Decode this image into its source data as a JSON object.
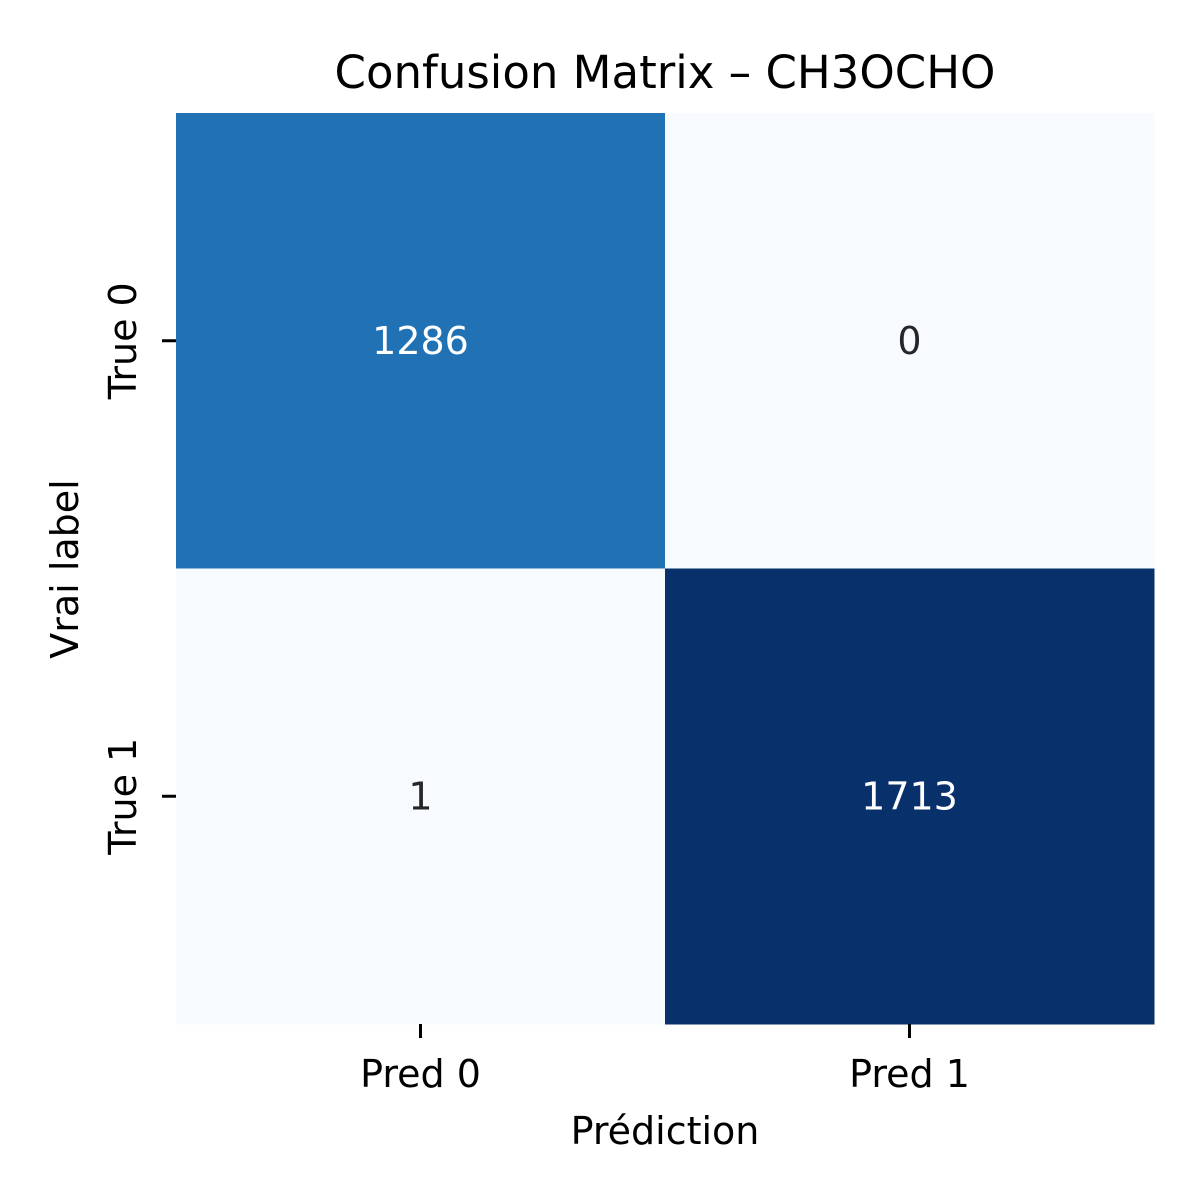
{
  "chart_data": {
    "type": "heatmap",
    "title": "Confusion Matrix – CH3OCHO",
    "xlabel": "Prédiction",
    "ylabel": "Vrai label",
    "x_categories": [
      "Pred 0",
      "Pred 1"
    ],
    "y_categories": [
      "True 0",
      "True 1"
    ],
    "values": [
      [
        1286,
        0
      ],
      [
        1,
        1713
      ]
    ],
    "colormap": "Blues",
    "color_range": [
      0,
      1713
    ],
    "colorbar": false,
    "grid": false,
    "colors": {
      "low": "#f7fbff",
      "mid": "#2171b5",
      "high": "#08306b",
      "text_light": "#ffffff",
      "text_dark": "#262626"
    }
  }
}
